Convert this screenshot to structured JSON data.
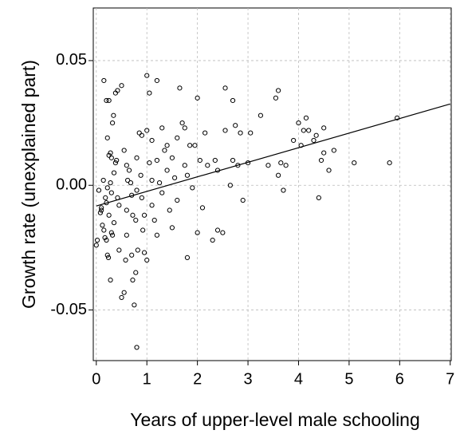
{
  "chart_data": {
    "type": "scatter",
    "x_label": "Years of upper-level male schooling",
    "y_label": "Growth rate (unexplained part)",
    "x": [
      0.0,
      0.02,
      0.05,
      0.08,
      0.1,
      0.12,
      0.15,
      0.17,
      0.2,
      0.18,
      0.14,
      0.1,
      0.15,
      0.2,
      0.25,
      0.22,
      0.25,
      0.28,
      0.3,
      0.32,
      0.34,
      0.38,
      0.42,
      0.5,
      0.22,
      0.24,
      0.28,
      0.2,
      0.3,
      0.32,
      0.35,
      0.25,
      0.22,
      0.28,
      0.3,
      0.35,
      0.38,
      0.4,
      0.42,
      0.45,
      0.45,
      0.5,
      0.55,
      0.58,
      0.6,
      0.6,
      0.62,
      0.55,
      0.6,
      0.65,
      0.68,
      0.7,
      0.72,
      0.7,
      0.72,
      0.75,
      0.78,
      0.8,
      0.82,
      0.78,
      0.8,
      0.8,
      0.85,
      0.9,
      0.88,
      0.9,
      0.95,
      0.92,
      0.95,
      1.0,
      1.0,
      1.05,
      1.1,
      1.0,
      1.05,
      1.1,
      1.1,
      1.15,
      1.2,
      1.2,
      1.2,
      1.25,
      1.3,
      1.3,
      1.35,
      1.4,
      1.4,
      1.45,
      1.5,
      1.5,
      1.55,
      1.6,
      1.6,
      1.65,
      1.7,
      1.75,
      1.75,
      1.8,
      1.8,
      1.85,
      1.9,
      1.95,
      2.0,
      2.0,
      2.05,
      2.1,
      2.15,
      2.2,
      2.3,
      2.35,
      2.4,
      2.4,
      2.5,
      2.55,
      2.55,
      2.65,
      2.7,
      2.7,
      2.75,
      2.8,
      2.85,
      2.9,
      3.0,
      3.05,
      3.25,
      3.4,
      3.55,
      3.6,
      3.6,
      3.65,
      3.7,
      3.75,
      3.9,
      4.0,
      4.05,
      4.1,
      4.15,
      4.2,
      4.3,
      4.35,
      4.4,
      4.45,
      4.5,
      4.5,
      4.6,
      4.7,
      5.1,
      5.8,
      5.95
    ],
    "values": [
      -0.024,
      -0.022,
      -0.002,
      -0.011,
      -0.009,
      -0.016,
      -0.018,
      -0.021,
      -0.007,
      -0.005,
      0.002,
      -0.01,
      0.042,
      0.034,
      0.034,
      0.019,
      0.012,
      0.013,
      0.011,
      0.025,
      0.028,
      0.037,
      0.038,
      0.04,
      -0.028,
      -0.029,
      -0.038,
      -0.022,
      -0.019,
      -0.02,
      -0.015,
      -0.012,
      -0.001,
      0.001,
      -0.003,
      0.005,
      0.009,
      0.01,
      -0.005,
      -0.008,
      -0.026,
      -0.045,
      -0.043,
      -0.03,
      -0.02,
      -0.01,
      0.002,
      0.014,
      0.008,
      0.006,
      0.001,
      -0.004,
      -0.012,
      -0.028,
      -0.038,
      -0.048,
      -0.035,
      -0.065,
      -0.026,
      -0.014,
      -0.002,
      0.011,
      0.021,
      0.02,
      0.004,
      -0.005,
      -0.012,
      -0.018,
      -0.027,
      -0.03,
      0.044,
      0.037,
      0.018,
      0.022,
      0.009,
      0.002,
      -0.008,
      -0.014,
      -0.02,
      0.042,
      0.01,
      0.001,
      -0.003,
      0.023,
      0.014,
      0.016,
      0.006,
      -0.01,
      -0.017,
      0.011,
      0.003,
      0.019,
      -0.006,
      0.039,
      0.025,
      0.023,
      0.008,
      -0.029,
      0.004,
      0.016,
      -0.001,
      0.016,
      0.035,
      -0.019,
      0.01,
      -0.009,
      0.021,
      0.008,
      -0.022,
      0.01,
      0.006,
      -0.018,
      -0.019,
      0.039,
      0.022,
      0.0,
      0.01,
      0.034,
      0.024,
      0.008,
      0.021,
      -0.006,
      0.009,
      0.021,
      0.028,
      0.008,
      0.035,
      0.038,
      0.004,
      0.009,
      -0.002,
      0.008,
      0.018,
      0.025,
      0.016,
      0.022,
      0.027,
      0.022,
      0.018,
      0.02,
      -0.005,
      0.01,
      0.013,
      0.023,
      0.006,
      0.014,
      0.009,
      0.009,
      0.027
    ],
    "color": "#000000",
    "fit_line": {
      "x": [
        0,
        7
      ],
      "values": [
        -0.0083,
        0.0326
      ]
    },
    "xlim": [
      -0.06,
      7.02
    ],
    "ylim": [
      -0.0703,
      0.0711
    ],
    "xticks": [
      0,
      1,
      2,
      3,
      4,
      5,
      6,
      7
    ],
    "yticks": [
      {
        "value": 0.05,
        "label": "0.05"
      },
      {
        "value": 0,
        "label": "0.00"
      },
      {
        "value": -0.05,
        "label": "-0.05"
      }
    ],
    "grid": true
  }
}
